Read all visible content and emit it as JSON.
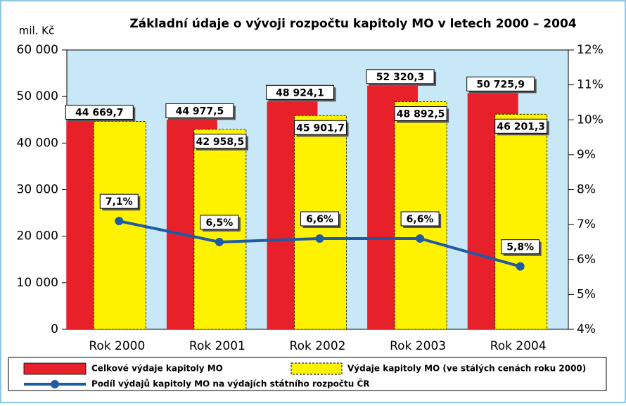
{
  "chart_data": {
    "type": "bar",
    "title": "Základní údaje o vývoji rozpočtu kapitoly MO v letech 2000 – 2004",
    "ylabel": "mil. Kč",
    "categories": [
      "Rok 2000",
      "Rok 2001",
      "Rok 2002",
      "Rok 2003",
      "Rok 2004"
    ],
    "series": [
      {
        "name": "Celkové výdaje kapitoly MO",
        "type": "bar",
        "color": "#e8202a",
        "values": [
          44669.7,
          44977.5,
          48924.1,
          52320.3,
          50725.9
        ],
        "value_labels": [
          "44 669,7",
          "44 977,5",
          "48 924,1",
          "52 320,3",
          "50 725,9"
        ]
      },
      {
        "name": "Výdaje kapitoly MO (ve stálých cenách roku 2000)",
        "type": "bar",
        "color": "#fff200",
        "values": [
          44669.7,
          42958.5,
          45901.7,
          48892.5,
          46201.3
        ],
        "value_labels": [
          null,
          "42 958,5",
          "45 901,7",
          "48 892,5",
          "46 201,3"
        ]
      },
      {
        "name": "Podíl výdajů kapitoly MO na výdajích státního rozpočtu ČR",
        "type": "line",
        "axis": "y2",
        "color": "#1f5aa6",
        "values": [
          7.1,
          6.5,
          6.6,
          6.6,
          5.8
        ],
        "value_labels": [
          "7,1%",
          "6,5%",
          "6,6%",
          "6,6%",
          "5,8%"
        ]
      }
    ],
    "ylim": [
      0,
      60000
    ],
    "yticks": [
      {
        "value": 0,
        "label": "0"
      },
      {
        "value": 10000,
        "label": "10 000"
      },
      {
        "value": 20000,
        "label": "20 000"
      },
      {
        "value": 30000,
        "label": "30 000"
      },
      {
        "value": 40000,
        "label": "40 000"
      },
      {
        "value": 50000,
        "label": "50 000"
      },
      {
        "value": 60000,
        "label": "60 000"
      }
    ],
    "y2lim": [
      4,
      12
    ],
    "y2ticks": [
      {
        "value": 4,
        "label": "4%"
      },
      {
        "value": 5,
        "label": "5%"
      },
      {
        "value": 6,
        "label": "6%"
      },
      {
        "value": 7,
        "label": "7%"
      },
      {
        "value": 8,
        "label": "8%"
      },
      {
        "value": 9,
        "label": "9%"
      },
      {
        "value": 10,
        "label": "10%"
      },
      {
        "value": 11,
        "label": "11%"
      },
      {
        "value": 12,
        "label": "12%"
      }
    ],
    "background": "#c9e8f7"
  }
}
